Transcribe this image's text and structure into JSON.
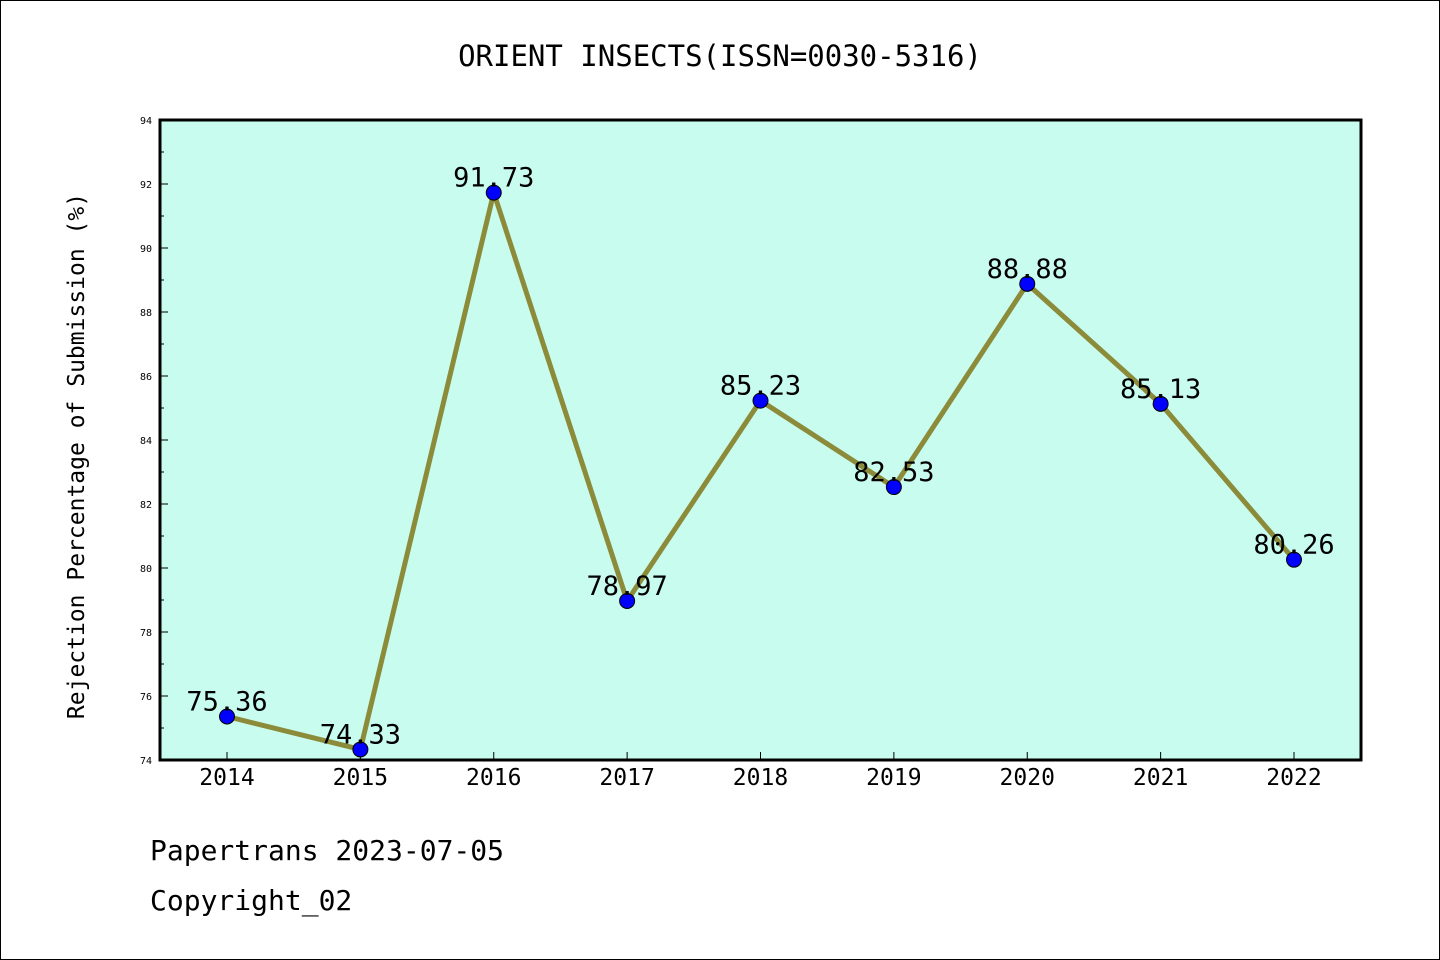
{
  "chart_data": {
    "type": "line",
    "title": "ORIENT INSECTS(ISSN=0030-5316)",
    "xlabel": "",
    "ylabel": "Rejection Percentage of Submission (%)",
    "categories": [
      "2014",
      "2015",
      "2016",
      "2017",
      "2018",
      "2019",
      "2020",
      "2021",
      "2022"
    ],
    "series": [
      {
        "name": "Rejection Percentage",
        "values": [
          75.36,
          74.33,
          91.73,
          78.97,
          85.23,
          82.53,
          88.88,
          85.13,
          80.26
        ],
        "labels": [
          "75.36",
          "74.33",
          "91.73",
          "78.97",
          "85.23",
          "82.53",
          "88.88",
          "85.13",
          "80.26"
        ]
      }
    ],
    "ylim": [
      74,
      94
    ],
    "yticks": [
      "74",
      "76",
      "78",
      "80",
      "82",
      "84",
      "86",
      "88",
      "90",
      "92",
      "94"
    ],
    "grid": false,
    "colors": {
      "plot_background": "#c8fcef",
      "line": "#8b8b3a",
      "marker": "#0000ff"
    }
  },
  "footer": {
    "line1": "Papertrans 2023-07-05",
    "line2": "Copyright_02"
  }
}
